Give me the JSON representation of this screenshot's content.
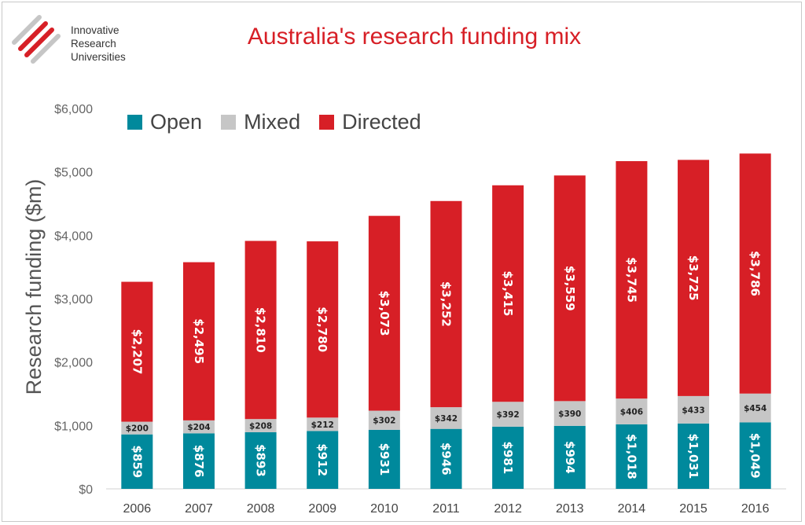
{
  "logo": {
    "lines": [
      "Innovative",
      "Research",
      "Universities"
    ]
  },
  "colors": {
    "open": "#00899c",
    "mixed": "#c6c6c6",
    "directed": "#d71f26",
    "brand": "#d71f26"
  },
  "chart_data": {
    "type": "bar",
    "stacked": true,
    "title": "Australia's research funding mix",
    "xlabel": "",
    "ylabel": "Research funding ($m)",
    "ylim": [
      0,
      6000
    ],
    "yticks": [
      "$0",
      "$1,000",
      "$2,000",
      "$3,000",
      "$4,000",
      "$5,000",
      "$6,000"
    ],
    "categories": [
      "2006",
      "2007",
      "2008",
      "2009",
      "2010",
      "2011",
      "2012",
      "2013",
      "2014",
      "2015",
      "2016"
    ],
    "legend_position": "top-left",
    "series": [
      {
        "name": "Open",
        "values": [
          859,
          876,
          893,
          912,
          931,
          946,
          981,
          994,
          1018,
          1031,
          1049
        ],
        "labels": [
          "$859",
          "$876",
          "$893",
          "$912",
          "$931",
          "$946",
          "$981",
          "$994",
          "$1,018",
          "$1,031",
          "$1,049"
        ]
      },
      {
        "name": "Mixed",
        "values": [
          200,
          204,
          208,
          212,
          302,
          342,
          392,
          390,
          406,
          433,
          454
        ],
        "labels": [
          "$200",
          "$204",
          "$208",
          "$212",
          "$302",
          "$342",
          "$392",
          "$390",
          "$406",
          "$433",
          "$454"
        ]
      },
      {
        "name": "Directed",
        "values": [
          2207,
          2495,
          2810,
          2780,
          3073,
          3252,
          3415,
          3559,
          3745,
          3725,
          3786
        ],
        "labels": [
          "$2,207",
          "$2,495",
          "$2,810",
          "$2,780",
          "$3,073",
          "$3,252",
          "$3,415",
          "$3,559",
          "$3,745",
          "$3,725",
          "$3,786"
        ]
      }
    ],
    "grid": false
  }
}
